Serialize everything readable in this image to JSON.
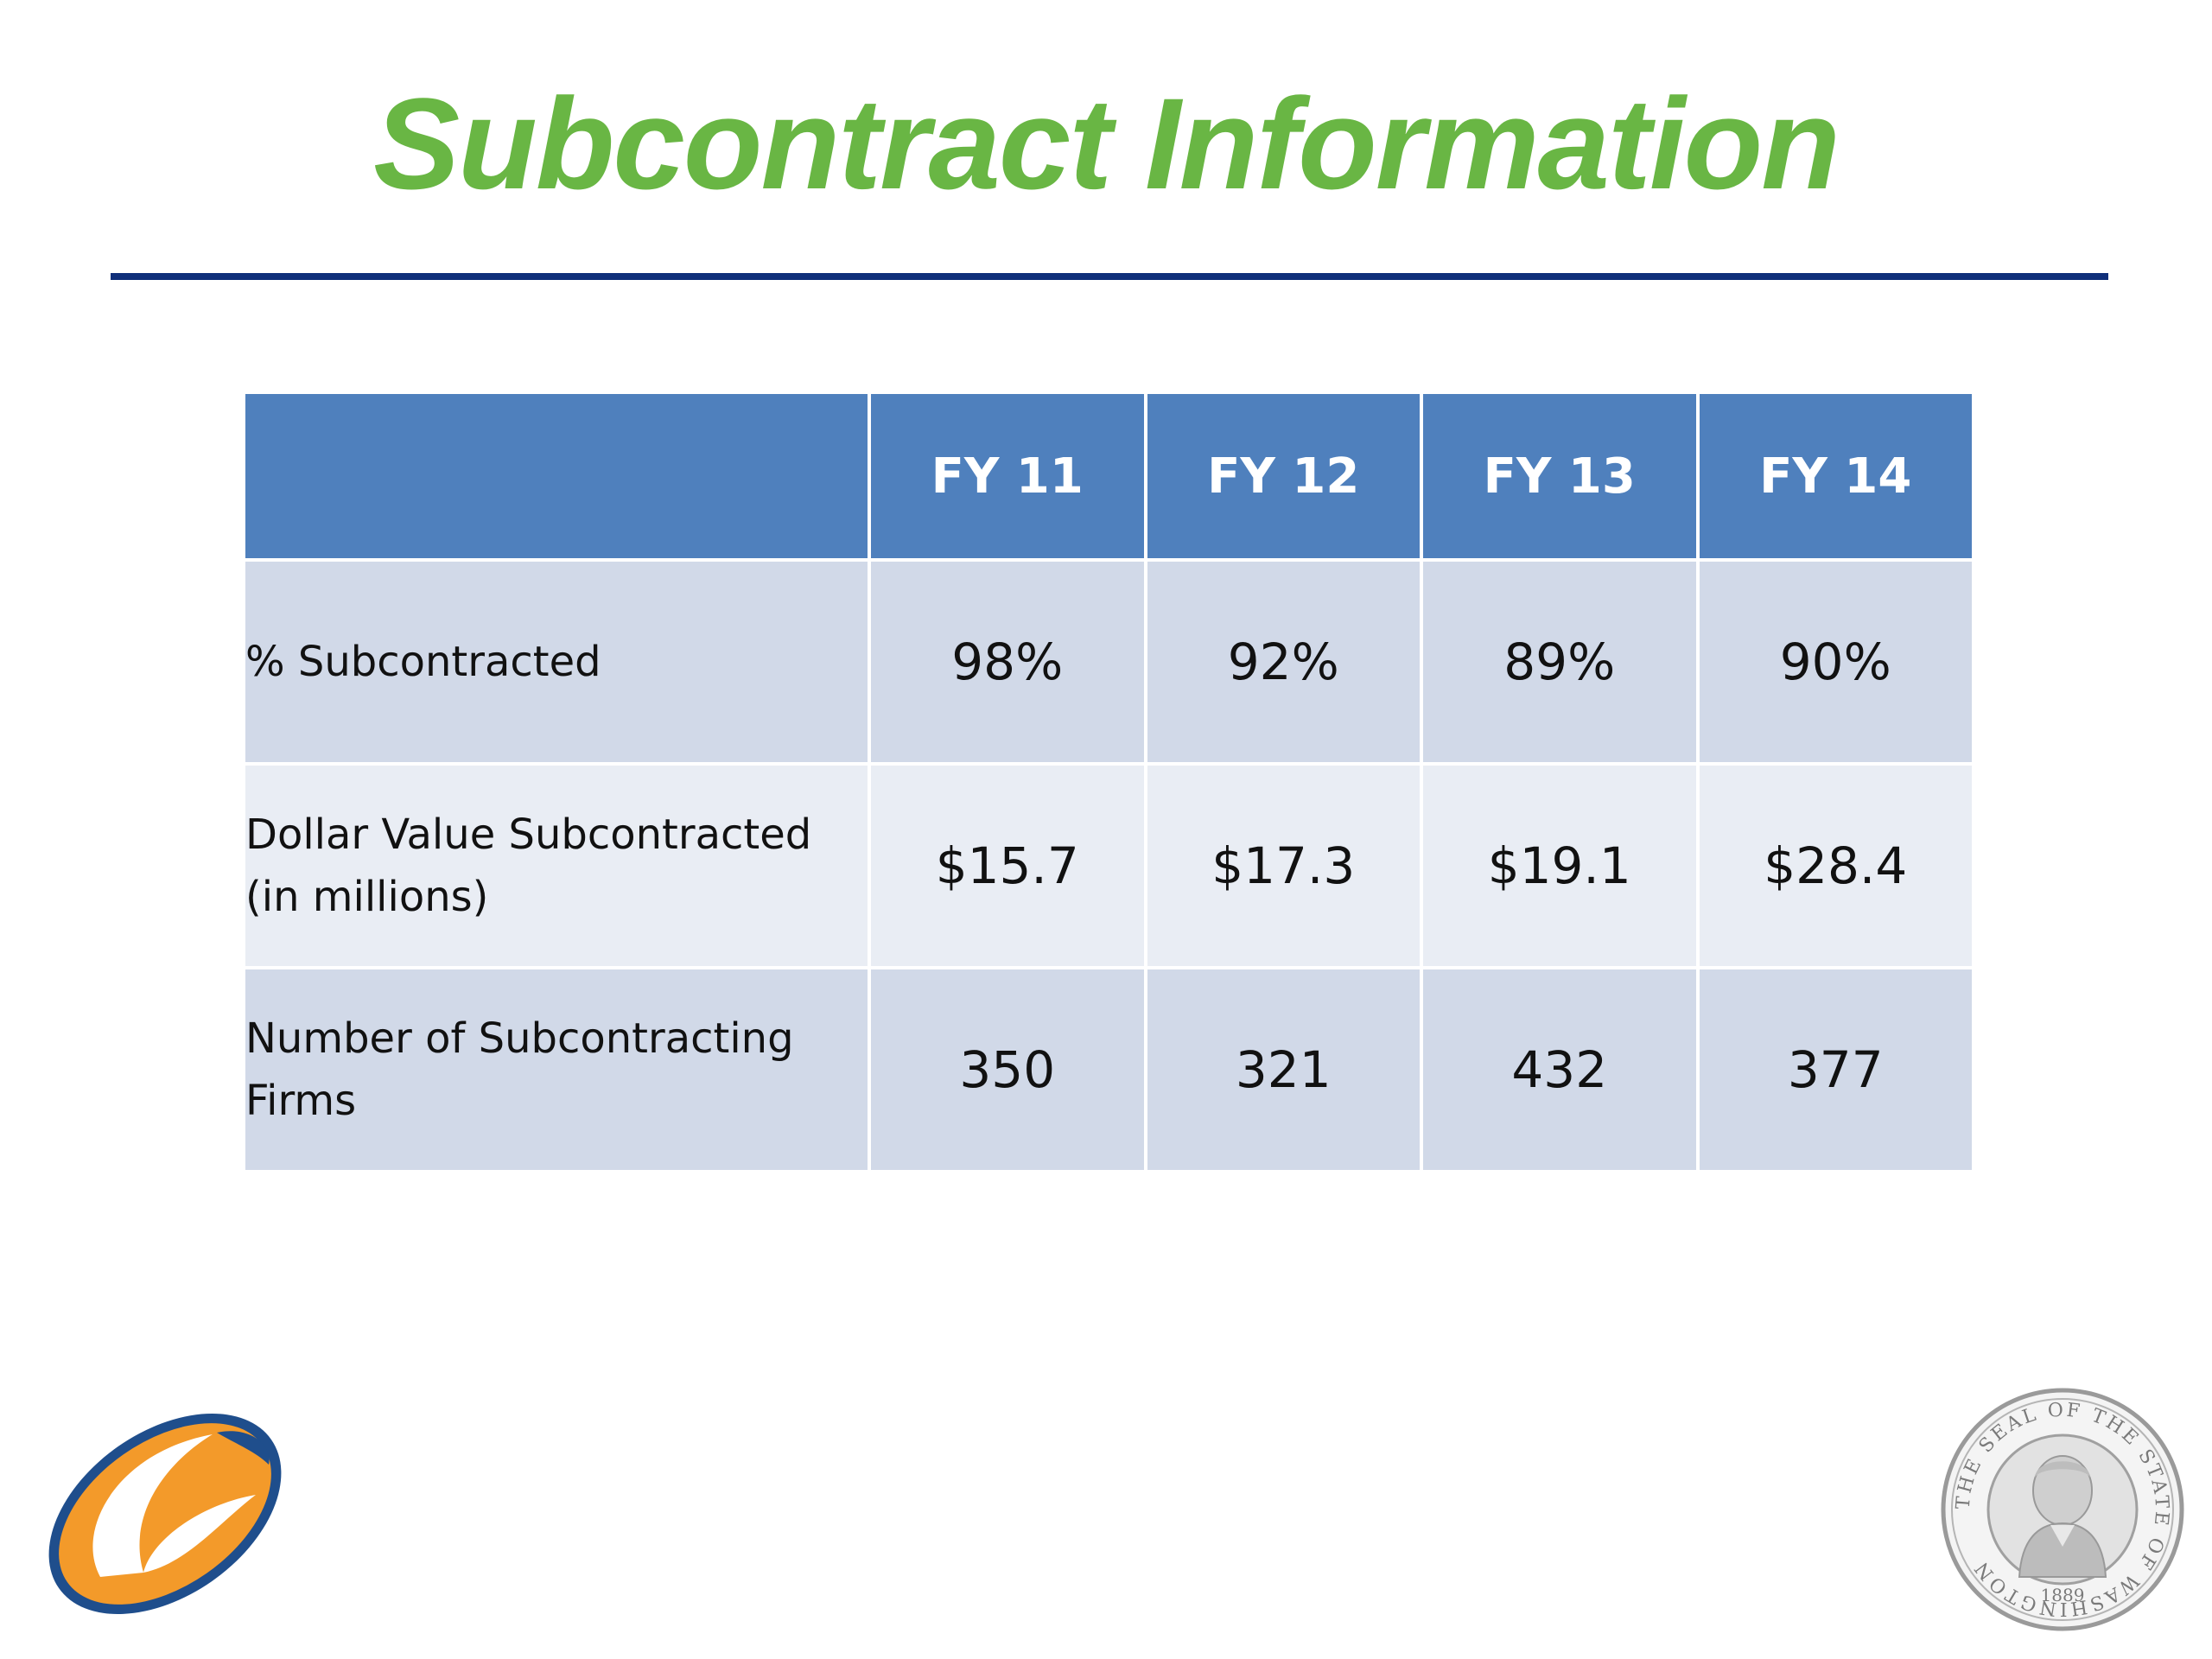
{
  "slide": {
    "title": "Subcontract Information"
  },
  "table": {
    "columns": [
      "",
      "FY 11",
      "FY 12",
      "FY 13",
      "FY 14"
    ],
    "rows": [
      {
        "label_line1": "% Subcontracted",
        "label_line2": "",
        "values": [
          "98%",
          "92%",
          "89%",
          "90%"
        ]
      },
      {
        "label_line1": "Dollar Value Subcontracted",
        "label_line2": "(in millions)",
        "values": [
          "$15.7",
          "$17.3",
          "$19.1",
          "$28.4"
        ]
      },
      {
        "label_line1": "Number of Subcontracting",
        "label_line2": "Firms",
        "values": [
          "350",
          "321",
          "432",
          "377"
        ]
      }
    ]
  },
  "logos": {
    "left": "orange-blue-swoosh-logo",
    "right": {
      "name": "washington-state-seal",
      "ring_text": "THE SEAL OF THE STATE OF WASHINGTON",
      "year": "1889"
    }
  },
  "colors": {
    "title": "#69b644",
    "rule": "#0f2f7a",
    "header": "#4f80bd",
    "row_dark": "#d1d9e8",
    "row_light": "#e9edf4"
  }
}
